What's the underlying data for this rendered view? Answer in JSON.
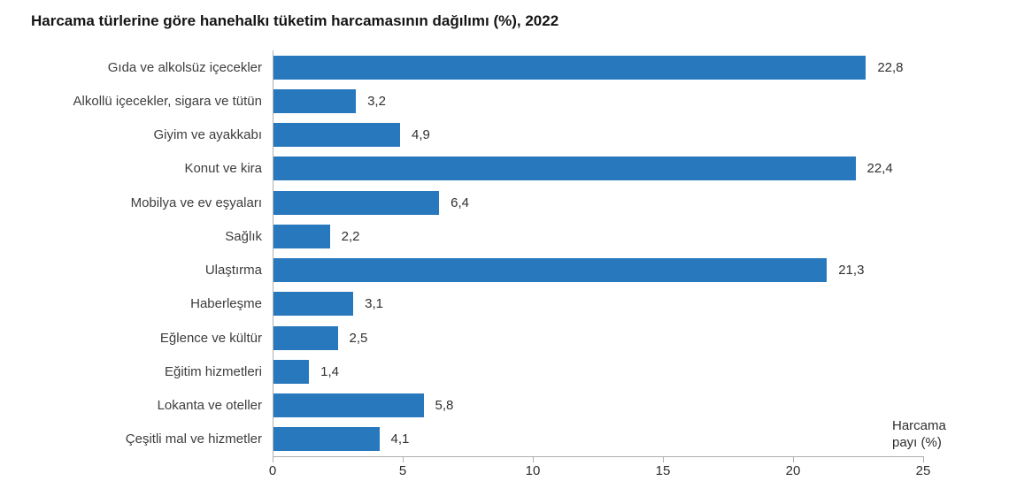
{
  "chart_data": {
    "type": "bar",
    "orientation": "horizontal",
    "title": "Harcama türlerine göre hanehalkı tüketim harcamasının dağılımı (%), 2022",
    "categories": [
      "Gıda ve alkolsüz içecekler",
      "Alkollü içecekler, sigara ve tütün",
      "Giyim ve ayakkabı",
      "Konut ve kira",
      "Mobilya ve ev eşyaları",
      "Sağlık",
      "Ulaştırma",
      "Haberleşme",
      "Eğlence ve kültür",
      "Eğitim hizmetleri",
      "Lokanta ve oteller",
      "Çeşitli mal ve hizmetler"
    ],
    "values": [
      22.8,
      3.2,
      4.9,
      22.4,
      6.4,
      2.2,
      21.3,
      3.1,
      2.5,
      1.4,
      5.8,
      4.1
    ],
    "value_labels": [
      "22,8",
      "3,2",
      "4,9",
      "22,4",
      "6,4",
      "2,2",
      "21,3",
      "3,1",
      "2,5",
      "1,4",
      "5,8",
      "4,1"
    ],
    "x_ticks": [
      "0",
      "5",
      "10",
      "15",
      "20",
      "25"
    ],
    "xlim": [
      0,
      25
    ],
    "xlabel_lines": [
      "Harcama",
      "payı (%)"
    ],
    "ylabel": "",
    "grid": "off",
    "legend": "none",
    "bar_color": "#2878be"
  }
}
